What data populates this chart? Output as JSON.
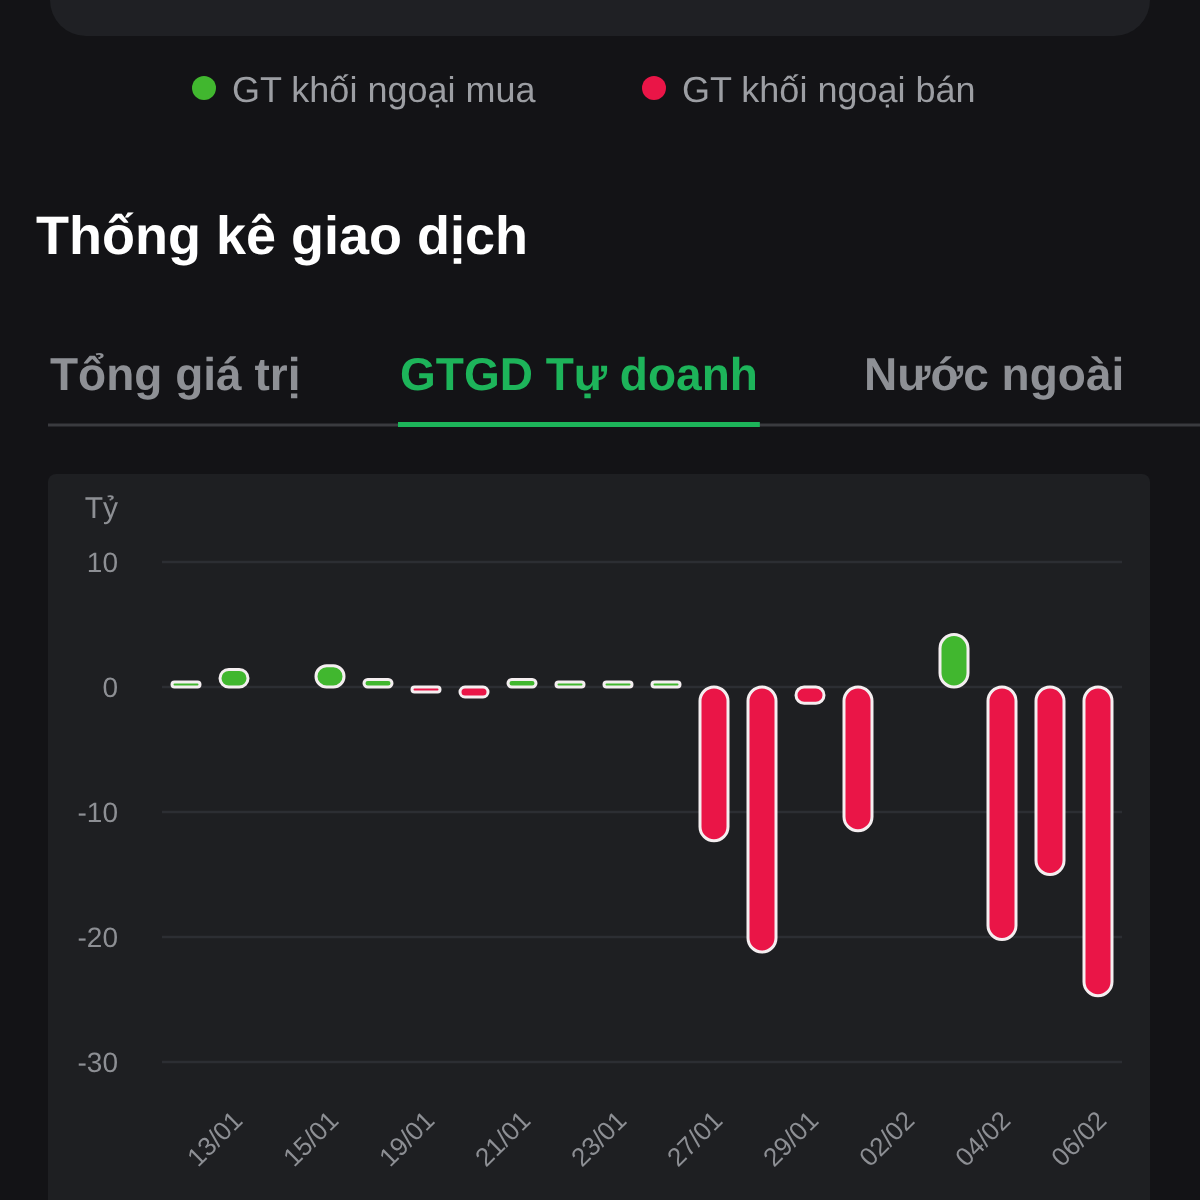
{
  "chart_data": {
    "type": "bar",
    "title": "Thống kê giao dịch",
    "subtitle": "GTGD Tự doanh",
    "annotations": [
      "Tổng giá trị",
      "Nước ngoài"
    ],
    "ylabel": "Tỷ",
    "categories": [
      null,
      "13/01",
      null,
      "15/01",
      null,
      "19/01",
      null,
      "21/01",
      null,
      "23/01",
      null,
      "27/01",
      null,
      "29/01",
      null,
      "02/02",
      null,
      "04/02",
      null,
      "06/02"
    ],
    "series": [
      {
        "name": "GT khối ngoại mua",
        "color": "#41b72f",
        "values": [
          0.4,
          1.4,
          null,
          1.7,
          0.6,
          null,
          null,
          0.6,
          0.4,
          0.4,
          0.4,
          null,
          null,
          null,
          null,
          null,
          4.2,
          null,
          null,
          null
        ]
      },
      {
        "name": "GT khối ngoại bán",
        "color": "#ea1547",
        "values": [
          null,
          null,
          null,
          null,
          null,
          -0.4,
          -0.8,
          null,
          null,
          null,
          null,
          -12.3,
          -21.2,
          -1.3,
          -11.5,
          null,
          null,
          -20.2,
          -15,
          -24.7
        ]
      }
    ],
    "stacked": true,
    "ylim": [
      -30,
      10
    ],
    "yticks": [
      -30,
      -20,
      -10,
      0,
      10
    ],
    "grid": "y",
    "legend": "top"
  }
}
